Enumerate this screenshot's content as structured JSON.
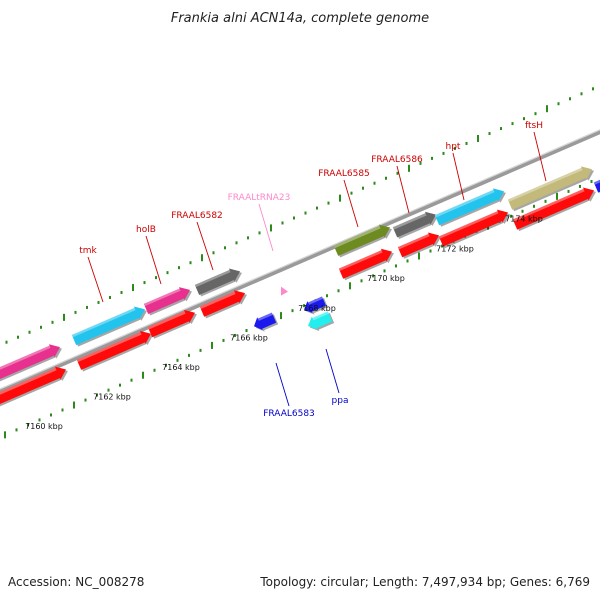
{
  "title": "Frankia alni ACN14a, complete genome",
  "accession_text": "Accession: NC_008278",
  "summary_text": "Topology: circular; Length: 7,497,934 bp; Genes: 6,769",
  "colors": {
    "backbone": "#8c8c8c",
    "tick": "#2a8a1a",
    "label_forward": "#cc0000",
    "label_reverse": "#0000cc",
    "label_trna": "#ff88cc"
  },
  "scale_labels": [
    "7160 kbp",
    "7162 kbp",
    "7164 kbp",
    "7166 kbp",
    "7168 kbp",
    "7170 kbp",
    "7172 kbp",
    "7174 kbp"
  ],
  "genes": [
    {
      "id": "g-left-pink",
      "strand": "forward",
      "fill": "#e8308e",
      "label": ""
    },
    {
      "id": "g-tmk",
      "strand": "forward",
      "fill": "#22c4ee",
      "label": "tmk"
    },
    {
      "id": "g-holB",
      "strand": "forward",
      "fill": "#e8308e",
      "label": "holB"
    },
    {
      "id": "g-FRAAL6582",
      "strand": "forward",
      "fill": "#666666",
      "label": "FRAAL6582"
    },
    {
      "id": "g-FRAALtRNA23",
      "strand": "trna",
      "fill": "#ff88cc",
      "label": "FRAALtRNA23"
    },
    {
      "id": "g-FRAAL6583",
      "strand": "reverse",
      "fill": "#1a1aee",
      "label": "FRAAL6583"
    },
    {
      "id": "g-ppa",
      "strand": "reverse",
      "fill": "#22eeee",
      "label": "ppa"
    },
    {
      "id": "g-ppa-adjacent",
      "strand": "reverse",
      "fill": "#1a1aee",
      "label": ""
    },
    {
      "id": "g-FRAAL6585",
      "strand": "forward",
      "fill": "#6e8b22",
      "label": "FRAAL6585"
    },
    {
      "id": "g-FRAAL6586",
      "strand": "forward",
      "fill": "#666666",
      "label": "FRAAL6586"
    },
    {
      "id": "g-hpt",
      "strand": "forward",
      "fill": "#22c4ee",
      "label": "hpt"
    },
    {
      "id": "g-ftsH",
      "strand": "forward",
      "fill": "#c2b97a",
      "label": "ftsH"
    },
    {
      "id": "g-right-edge",
      "strand": "forward",
      "fill": "#1a1aee",
      "label": ""
    }
  ]
}
